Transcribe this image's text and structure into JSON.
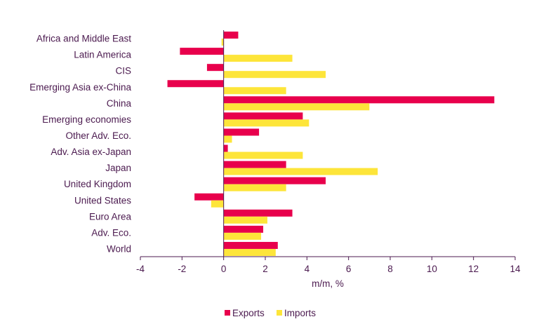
{
  "chart_data": {
    "type": "bar",
    "orientation": "horizontal",
    "categories": [
      "Africa and Middle East",
      "Latin America",
      "CIS",
      "Emerging Asia ex-China",
      "China",
      "Emerging economies",
      "Other Adv. Eco.",
      "Adv. Asia ex-Japan",
      "Japan",
      "United Kingdom",
      "United States",
      "Euro Area",
      "Adv. Eco.",
      "World"
    ],
    "series": [
      {
        "name": "Exports",
        "color": "#e8004c",
        "values": [
          0.7,
          -2.1,
          -0.8,
          -2.7,
          13.0,
          3.8,
          1.7,
          0.2,
          3.0,
          4.9,
          -1.4,
          3.3,
          1.9,
          2.6
        ]
      },
      {
        "name": "Imports",
        "color": "#fde53a",
        "values": [
          -0.1,
          3.3,
          4.9,
          3.0,
          7.0,
          4.1,
          0.4,
          3.8,
          7.4,
          3.0,
          -0.6,
          2.1,
          1.8,
          2.5
        ]
      }
    ],
    "xlabel": "m/m, %",
    "ylabel": "",
    "xlim": [
      -4,
      14
    ],
    "xticks": [
      "-4",
      "-2",
      "0",
      "2",
      "4",
      "6",
      "8",
      "10",
      "12",
      "14"
    ],
    "grid": false,
    "legend": {
      "position": "bottom-center",
      "entries": [
        "Exports",
        "Imports"
      ]
    }
  }
}
